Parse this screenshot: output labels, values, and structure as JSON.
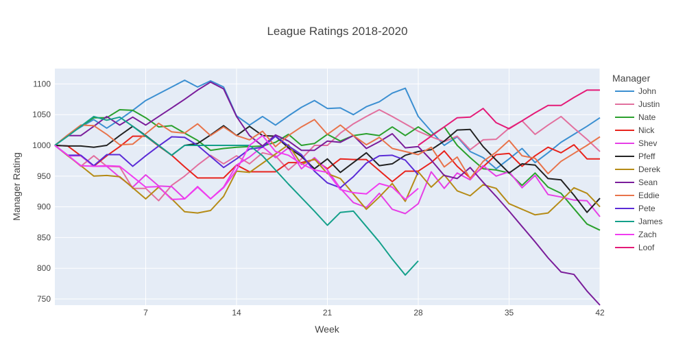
{
  "chart_data": {
    "type": "line",
    "title": "League Ratings 2018-2020",
    "xlabel": "Week",
    "ylabel": "Manager Rating",
    "xlim": [
      0,
      42
    ],
    "ylim": [
      740,
      1125
    ],
    "x_ticks": [
      7,
      14,
      21,
      28,
      35,
      42
    ],
    "y_ticks": [
      750,
      800,
      850,
      900,
      950,
      1000,
      1050,
      1100
    ],
    "grid": true,
    "legend_title": "Manager",
    "legend_position": "right",
    "series": [
      {
        "name": "John",
        "color": "#3b8fd1",
        "x": [
          0,
          1,
          2,
          3,
          4,
          5,
          6,
          7,
          8,
          9,
          10,
          11,
          12,
          13,
          14,
          15,
          16,
          17,
          18,
          19,
          20,
          21,
          22,
          23,
          24,
          25,
          26,
          27,
          28,
          29,
          30,
          31,
          32,
          33,
          34,
          35,
          36,
          37,
          38,
          39,
          40,
          41,
          42
        ],
        "values": [
          1000,
          1017,
          1030,
          1042,
          1028,
          1042,
          1057,
          1073,
          1084,
          1095,
          1106,
          1095,
          1105,
          1095,
          1048,
          1033,
          1047,
          1033,
          1048,
          1062,
          1073,
          1060,
          1061,
          1050,
          1063,
          1071,
          1085,
          1093,
          1047,
          1023,
          1000,
          1014,
          990,
          980,
          962,
          978,
          995,
          972,
          988,
          1005,
          1018,
          1031,
          1045
        ]
      },
      {
        "name": "Justin",
        "color": "#e2709e",
        "x": [
          0,
          1,
          2,
          3,
          4,
          5,
          6,
          7,
          8,
          9,
          10,
          11,
          12,
          13,
          14,
          15,
          16,
          17,
          18,
          19,
          20,
          21,
          22,
          23,
          24,
          25,
          26,
          27,
          28,
          29,
          30,
          31,
          32,
          33,
          34,
          35,
          36,
          37,
          38,
          39,
          40,
          41,
          42
        ],
        "values": [
          1000,
          984,
          966,
          983,
          966,
          965,
          930,
          930,
          910,
          935,
          950,
          968,
          984,
          970,
          983,
          970,
          988,
          983,
          960,
          978,
          1000,
          1000,
          1020,
          1035,
          1047,
          1058,
          1047,
          1035,
          1023,
          1014,
          1006,
          1015,
          993,
          1009,
          1010,
          1028,
          1040,
          1018,
          1033,
          1047,
          1028,
          1010,
          990
        ]
      },
      {
        "name": "Nate",
        "color": "#2aa02c",
        "x": [
          0,
          1,
          2,
          3,
          4,
          5,
          6,
          7,
          8,
          9,
          10,
          11,
          12,
          13,
          14,
          15,
          16,
          17,
          18,
          19,
          20,
          21,
          22,
          23,
          24,
          25,
          26,
          27,
          28,
          29,
          30,
          31,
          32,
          33,
          34,
          35,
          36,
          37,
          38,
          39,
          40,
          41,
          42
        ],
        "values": [
          1000,
          1016,
          1031,
          1045,
          1045,
          1058,
          1057,
          1045,
          1030,
          1032,
          1020,
          1008,
          992,
          995,
          997,
          998,
          999,
          1005,
          1018,
          1000,
          1003,
          1018,
          1007,
          1016,
          1019,
          1016,
          1030,
          1016,
          1030,
          1016,
          1030,
          1000,
          980,
          962,
          960,
          955,
          935,
          955,
          932,
          922,
          897,
          872,
          862
        ]
      },
      {
        "name": "Nick",
        "color": "#e8231c",
        "x": [
          0,
          1,
          2,
          3,
          4,
          5,
          6,
          7,
          8,
          9,
          10,
          11,
          12,
          13,
          14,
          15,
          16,
          17,
          18,
          19,
          20,
          21,
          22,
          23,
          24,
          25,
          26,
          27,
          28,
          29,
          30,
          31,
          32,
          33,
          34,
          35,
          36,
          37,
          38,
          39,
          40,
          41,
          42
        ],
        "values": [
          1000,
          999,
          983,
          966,
          983,
          998,
          1015,
          1015,
          999,
          984,
          965,
          947,
          947,
          947,
          968,
          957,
          957,
          957,
          972,
          972,
          977,
          962,
          978,
          977,
          977,
          959,
          941,
          958,
          958,
          972,
          991,
          966,
          947,
          965,
          985,
          987,
          966,
          983,
          997,
          988,
          1001,
          978,
          978
        ]
      },
      {
        "name": "Shev",
        "color": "#e63ee6",
        "x": [
          0,
          1,
          2,
          3,
          4,
          5,
          6,
          7,
          8,
          9,
          10,
          11,
          12,
          13,
          14,
          15,
          16,
          17,
          18,
          19,
          20,
          21,
          22,
          23,
          24,
          25,
          26,
          27,
          28,
          29,
          30,
          31,
          32,
          33,
          34,
          35,
          36,
          37,
          38,
          39,
          40,
          41,
          42
        ],
        "values": [
          1000,
          983,
          983,
          966,
          966,
          948,
          932,
          952,
          934,
          933,
          913,
          933,
          913,
          932,
          968,
          981,
          998,
          980,
          996,
          962,
          980,
          960,
          930,
          907,
          899,
          922,
          896,
          889,
          905,
          957,
          930,
          955,
          944,
          967,
          950,
          957,
          931,
          951,
          920,
          916,
          911,
          910,
          884
        ]
      },
      {
        "name": "Pfeff",
        "color": "#222222",
        "x": [
          0,
          1,
          2,
          3,
          4,
          5,
          6,
          7,
          8,
          9,
          10,
          11,
          12,
          13,
          14,
          15,
          16,
          17,
          18,
          19,
          20,
          21,
          22,
          23,
          24,
          25,
          26,
          27,
          28,
          29,
          30,
          31,
          32,
          33,
          34,
          35,
          36,
          37,
          38,
          39,
          40,
          41,
          42
        ],
        "values": [
          1000,
          999,
          999,
          997,
          1000,
          1016,
          1031,
          1016,
          1000,
          984,
          1000,
          1003,
          1017,
          1032,
          1016,
          1031,
          1016,
          1015,
          996,
          982,
          962,
          978,
          956,
          972,
          988,
          967,
          970,
          984,
          990,
          993,
          1007,
          1025,
          1026,
          998,
          976,
          955,
          970,
          968,
          946,
          944,
          919,
          891,
          914
        ]
      },
      {
        "name": "Derek",
        "color": "#b58b16",
        "x": [
          0,
          1,
          2,
          3,
          4,
          5,
          6,
          7,
          8,
          9,
          10,
          11,
          12,
          13,
          14,
          15,
          16,
          17,
          18,
          19,
          20,
          21,
          22,
          23,
          24,
          25,
          26,
          27,
          28,
          29,
          30,
          31,
          32,
          33,
          34,
          35,
          36,
          37,
          38,
          39,
          40,
          41,
          42
        ],
        "values": [
          1000,
          983,
          967,
          950,
          951,
          949,
          931,
          913,
          932,
          913,
          892,
          890,
          894,
          917,
          958,
          956,
          971,
          986,
          1001,
          969,
          978,
          954,
          946,
          921,
          896,
          916,
          938,
          909,
          957,
          932,
          952,
          926,
          918,
          936,
          930,
          905,
          896,
          887,
          890,
          910,
          931,
          922,
          900
        ]
      },
      {
        "name": "Sean",
        "color": "#7a1d9a",
        "x": [
          0,
          1,
          2,
          3,
          4,
          5,
          6,
          7,
          8,
          9,
          10,
          11,
          12,
          13,
          14,
          15,
          16,
          17,
          18,
          19,
          20,
          21,
          22,
          23,
          24,
          25,
          26,
          27,
          28,
          29,
          30,
          31,
          32,
          33,
          34,
          35,
          36,
          37,
          38,
          39,
          40,
          41,
          42
        ],
        "values": [
          1000,
          1016,
          1016,
          1031,
          1047,
          1033,
          1046,
          1033,
          1047,
          1061,
          1075,
          1090,
          1103,
          1092,
          1047,
          1016,
          999,
          1017,
          1007,
          992,
          992,
          1007,
          1005,
          1016,
          995,
          1006,
          1019,
          996,
          998,
          976,
          951,
          946,
          964,
          940,
          917,
          893,
          868,
          843,
          817,
          794,
          790,
          763,
          740
        ]
      },
      {
        "name": "Eddie",
        "color": "#e8734a",
        "x": [
          0,
          1,
          2,
          3,
          4,
          5,
          6,
          7,
          8,
          9,
          10,
          11,
          12,
          13,
          14,
          15,
          16,
          17,
          18,
          19,
          20,
          21,
          22,
          23,
          24,
          25,
          26,
          27,
          28,
          29,
          30,
          31,
          32,
          33,
          34,
          35,
          36,
          37,
          38,
          39,
          40,
          41,
          42
        ],
        "values": [
          1000,
          1017,
          1033,
          1032,
          1018,
          1001,
          1002,
          1019,
          1036,
          1022,
          1020,
          1035,
          1016,
          1030,
          1016,
          1009,
          1023,
          998,
          1016,
          1030,
          1042,
          1018,
          1033,
          1016,
          1001,
          1013,
          995,
          990,
          985,
          997,
          965,
          981,
          946,
          974,
          989,
          1008,
          983,
          979,
          954,
          974,
          987,
          1000,
          1014
        ]
      },
      {
        "name": "Pete",
        "color": "#5a2bd6",
        "x": [
          0,
          1,
          2,
          3,
          4,
          5,
          6,
          7,
          8,
          9,
          10,
          11,
          12,
          13,
          14,
          15,
          16,
          17,
          18,
          19,
          20,
          21,
          22,
          23,
          24,
          25,
          26,
          27,
          28
        ],
        "values": [
          1000,
          984,
          984,
          967,
          985,
          985,
          966,
          983,
          999,
          1014,
          1013,
          1000,
          982,
          964,
          978,
          994,
          997,
          1015,
          999,
          985,
          958,
          939,
          931,
          949,
          971,
          983,
          984,
          976,
          952
        ]
      },
      {
        "name": "James",
        "color": "#14a08a",
        "x": [
          0,
          1,
          2,
          3,
          4,
          5,
          6,
          7,
          8,
          9,
          10,
          11,
          12,
          13,
          14,
          15,
          16,
          17,
          18,
          19,
          20,
          21,
          22,
          23,
          24,
          25,
          26,
          27,
          28
        ],
        "values": [
          1000,
          1015,
          1031,
          1047,
          1041,
          1046,
          1031,
          1015,
          1000,
          984,
          1000,
          1000,
          1000,
          1000,
          1000,
          1000,
          983,
          960,
          937,
          915,
          893,
          870,
          891,
          893,
          868,
          843,
          815,
          789,
          812
        ]
      },
      {
        "name": "Zach",
        "color": "#f03cf0",
        "x": [
          0,
          1,
          2,
          3,
          4,
          5,
          6,
          7,
          8,
          9,
          10,
          11,
          12,
          13,
          14,
          15,
          16,
          17,
          18,
          19,
          20,
          21,
          22,
          23,
          24,
          25,
          26,
          27,
          28
        ],
        "values": [
          1000,
          984,
          967,
          966,
          967,
          966,
          949,
          932,
          933,
          912,
          913,
          932,
          913,
          931,
          960,
          1000,
          1016,
          990,
          984,
          970,
          960,
          956,
          928,
          923,
          921,
          938,
          932,
          912,
          930
        ]
      },
      {
        "name": "Loof",
        "color": "#e41a77",
        "x": [
          28,
          29,
          30,
          31,
          32,
          33,
          34,
          35,
          36,
          37,
          38,
          39,
          40,
          41,
          42
        ],
        "values": [
          1000,
          1015,
          1030,
          1045,
          1046,
          1060,
          1037,
          1027,
          1040,
          1053,
          1065,
          1065,
          1078,
          1090,
          1090
        ]
      }
    ]
  }
}
